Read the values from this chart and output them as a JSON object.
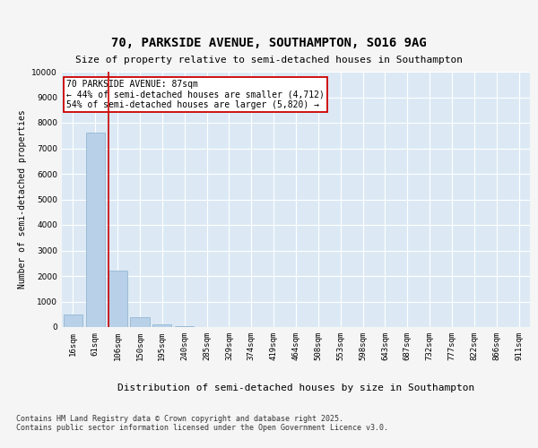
{
  "title": "70, PARKSIDE AVENUE, SOUTHAMPTON, SO16 9AG",
  "subtitle": "Size of property relative to semi-detached houses in Southampton",
  "xlabel": "Distribution of semi-detached houses by size in Southampton",
  "ylabel": "Number of semi-detached properties",
  "categories": [
    "16sqm",
    "61sqm",
    "106sqm",
    "150sqm",
    "195sqm",
    "240sqm",
    "285sqm",
    "329sqm",
    "374sqm",
    "419sqm",
    "464sqm",
    "508sqm",
    "553sqm",
    "598sqm",
    "643sqm",
    "687sqm",
    "732sqm",
    "777sqm",
    "822sqm",
    "866sqm",
    "911sqm"
  ],
  "values": [
    500,
    7600,
    2200,
    400,
    100,
    50,
    0,
    0,
    0,
    0,
    0,
    0,
    0,
    0,
    0,
    0,
    0,
    0,
    0,
    0,
    0
  ],
  "bar_color": "#b8d0e8",
  "bar_edge_color": "#8ab0cc",
  "property_line_x": 1.578,
  "property_sqm": 87,
  "pct_smaller": 44,
  "count_smaller": 4712,
  "pct_larger": 54,
  "count_larger": 5820,
  "annotation_box_color": "#cc0000",
  "ylim": [
    0,
    10000
  ],
  "yticks": [
    0,
    1000,
    2000,
    3000,
    4000,
    5000,
    6000,
    7000,
    8000,
    9000,
    10000
  ],
  "footer": "Contains HM Land Registry data © Crown copyright and database right 2025.\nContains public sector information licensed under the Open Government Licence v3.0.",
  "plot_bg_color": "#dce9f5",
  "fig_bg_color": "#f5f5f5",
  "grid_color": "#ffffff",
  "title_fontsize": 10,
  "subtitle_fontsize": 8,
  "ylabel_fontsize": 7,
  "xlabel_fontsize": 8,
  "tick_fontsize": 6.5,
  "annot_fontsize": 7,
  "footer_fontsize": 6
}
